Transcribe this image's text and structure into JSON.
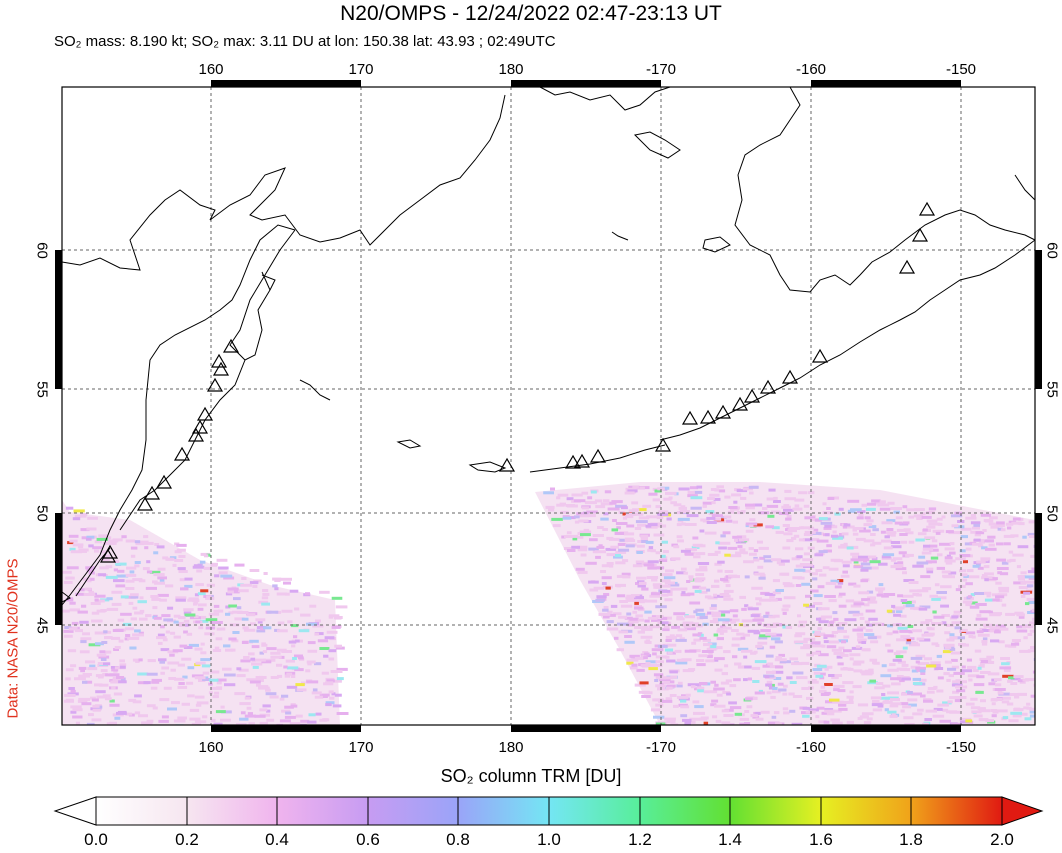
{
  "title": "N20/OMPS - 12/24/2022 02:47-23:13 UT",
  "subtitle": "SO₂ mass: 8.190 kt; SO₂ max: 3.11 DU at lon: 150.38 lat: 43.93 ; 02:49UTC",
  "credit": "Data: NASA N20/OMPS",
  "lon_labels": [
    "160",
    "170",
    "180",
    "-170",
    "-160",
    "-150"
  ],
  "lat_labels": [
    "60",
    "55",
    "50",
    "45"
  ],
  "colorbar": {
    "title": "SO₂ column TRM [DU]",
    "ticks": [
      "0.0",
      "0.2",
      "0.4",
      "0.6",
      "0.8",
      "1.0",
      "1.2",
      "1.4",
      "1.6",
      "1.8",
      "2.0"
    ],
    "stops": [
      "#ffffff",
      "#f6e6f0",
      "#f0b4ee",
      "#c79cf2",
      "#9aa4f8",
      "#74e6f4",
      "#58ee9a",
      "#62e032",
      "#e6f022",
      "#f0a21a",
      "#e01a12"
    ]
  }
}
